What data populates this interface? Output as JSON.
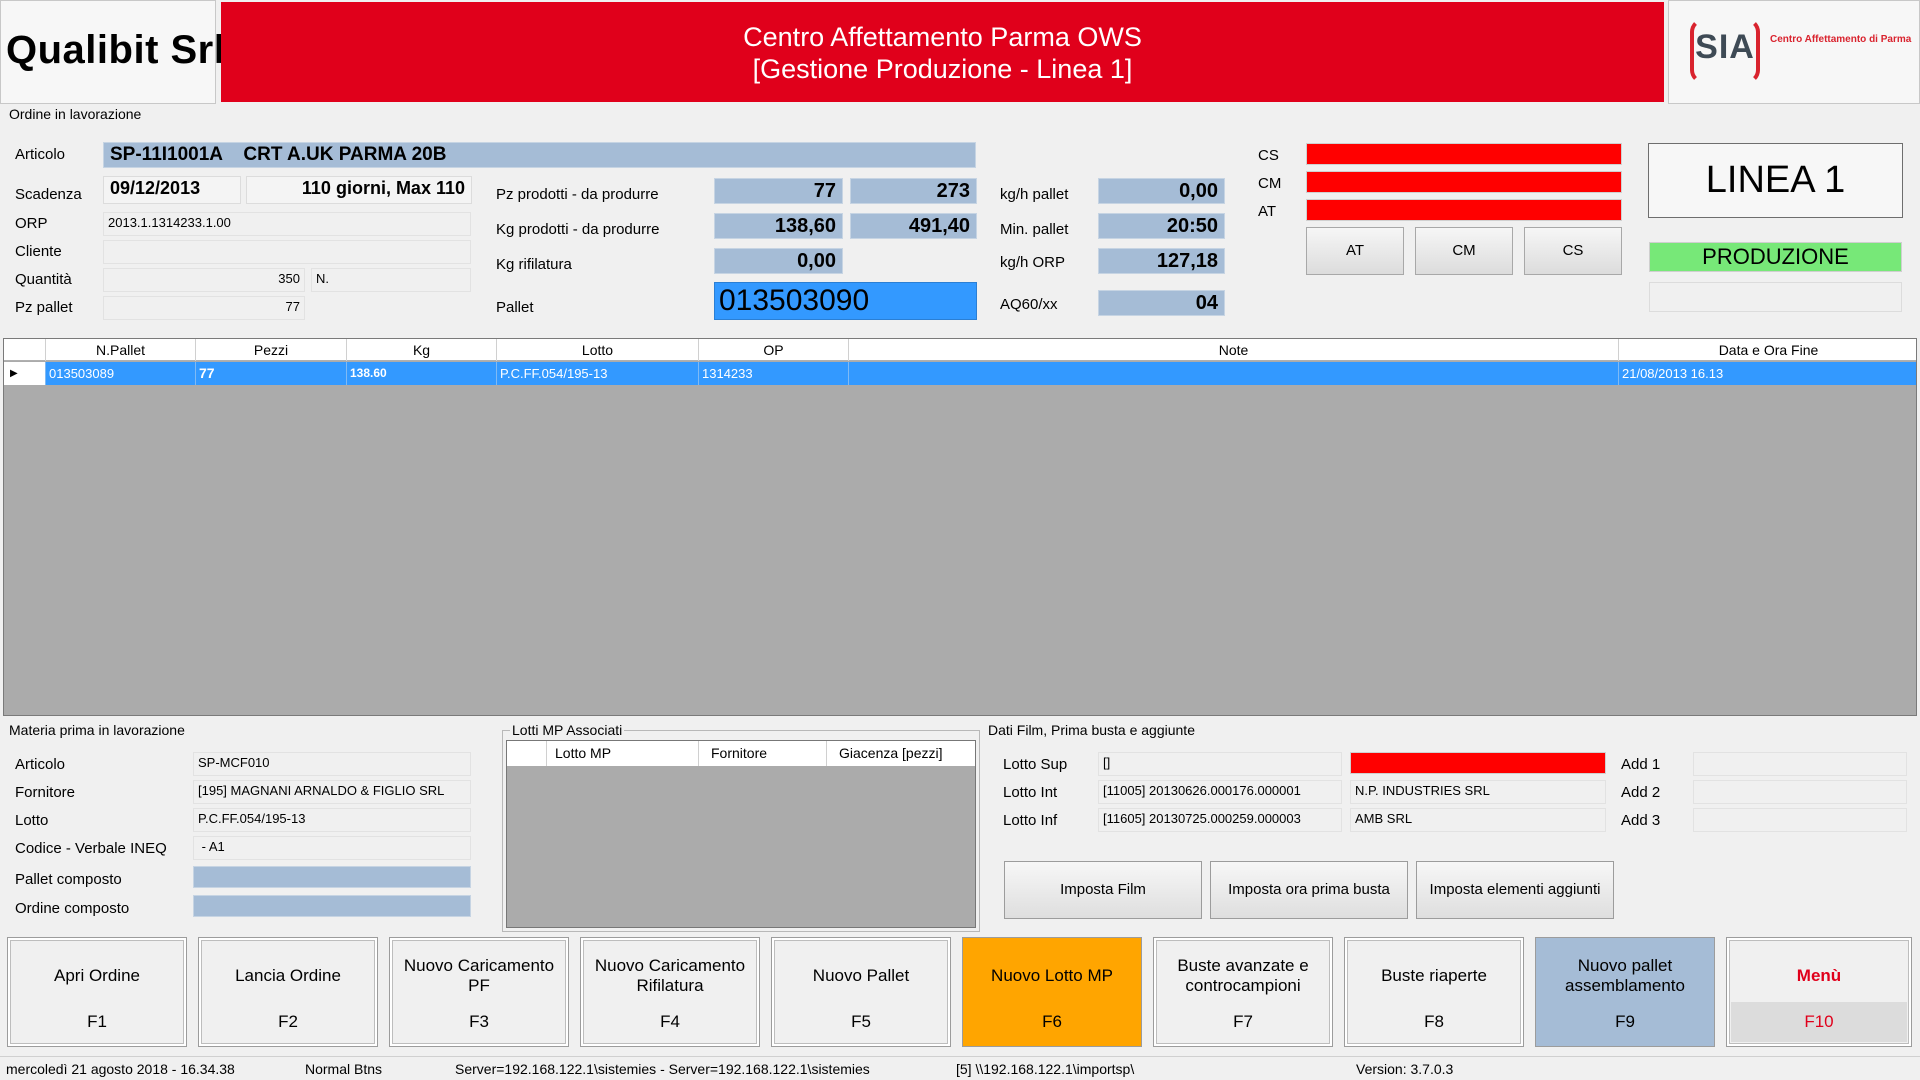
{
  "header": {
    "company": "Qualibit Srl",
    "title_line1": "Centro Affettamento Parma OWS",
    "title_line2": "[Gestione Produzione - Linea 1]",
    "logo_text": "SIA",
    "logo_sub": "Centro Affettamento di Parma"
  },
  "order": {
    "section_title": "Ordine in lavorazione",
    "articolo_label": "Articolo",
    "articolo_value": "SP-11I1001A    CRT A.UK PARMA 20B",
    "scadenza_label": "Scadenza",
    "scadenza_value": "09/12/2013",
    "scadenza_info": "110 giorni, Max 110",
    "orp_label": "ORP",
    "orp_value": "2013.1.1314233.1.00",
    "cliente_label": "Cliente",
    "cliente_value": "",
    "quantita_label": "Quantità",
    "quantita_value": "350",
    "quantita_unit": "N.",
    "pzpallet_label": "Pz pallet",
    "pzpallet_value": "77"
  },
  "production": {
    "pz_label": "Pz prodotti - da produrre",
    "pz_prodotti": "77",
    "pz_da_produrre": "273",
    "kg_label": "Kg prodotti - da produrre",
    "kg_prodotti": "138,60",
    "kg_da_produrre": "491,40",
    "kg_rifilatura_label": "Kg rifilatura",
    "kg_rifilatura": "0,00",
    "pallet_label": "Pallet",
    "pallet_value": "013503090",
    "kgh_pallet_label": "kg/h pallet",
    "kgh_pallet": "0,00",
    "min_pallet_label": "Min. pallet",
    "min_pallet": "20:50",
    "kgh_orp_label": "kg/h ORP",
    "kgh_orp": "127,18",
    "aq_label": "AQ60/xx",
    "aq_value": "04"
  },
  "alarms": {
    "cs_label": "CS",
    "cm_label": "CM",
    "at_label": "AT",
    "bar_color": "#ff0000",
    "btn_at": "AT",
    "btn_cm": "CM",
    "btn_cs": "CS"
  },
  "line": {
    "name": "LINEA 1",
    "status": "PRODUZIONE",
    "status_color": "#77e878",
    "extra": ""
  },
  "pallet_grid": {
    "columns": [
      "N.Pallet",
      "Pezzi",
      "Kg",
      "Lotto",
      "OP",
      "Note",
      "Data e Ora Fine"
    ],
    "rows": [
      [
        "013503089",
        "77",
        "138.60",
        "P.C.FF.054/195-13",
        "1314233",
        "",
        "21/08/2013 16.13"
      ]
    ],
    "selected_color": "#3399ff"
  },
  "materia": {
    "section_title": "Materia prima in lavorazione",
    "articolo_label": "Articolo",
    "articolo_value": "SP-MCF010",
    "fornitore_label": "Fornitore",
    "fornitore_value": "[195] MAGNANI ARNALDO & FIGLIO SRL",
    "lotto_label": "Lotto",
    "lotto_value": "P.C.FF.054/195-13",
    "codice_label": "Codice - Verbale INEQ",
    "codice_value": " - A1",
    "pallet_composto_label": "Pallet composto",
    "ordine_composto_label": "Ordine composto"
  },
  "lotti_mp": {
    "section_title": "Lotti MP Associati",
    "columns": [
      "Lotto MP",
      "Fornitore",
      "Giacenza [pezzi]"
    ]
  },
  "film": {
    "section_title": "Dati Film, Prima busta e aggiunte",
    "lotto_sup_label": "Lotto Sup",
    "lotto_sup_value": "[]",
    "lotto_int_label": "Lotto Int",
    "lotto_int_value": "[11005] 20130626.000176.000001",
    "lotto_int_supplier": "N.P. INDUSTRIES SRL",
    "lotto_inf_label": "Lotto Inf",
    "lotto_inf_value": "[11605] 20130725.000259.000003",
    "lotto_inf_supplier": "AMB SRL",
    "add1_label": "Add 1",
    "add2_label": "Add 2",
    "add3_label": "Add 3",
    "btn_imposta_film": "Imposta Film",
    "btn_imposta_ora": "Imposta ora prima busta",
    "btn_imposta_elementi": "Imposta elementi aggiunti"
  },
  "fkeys": [
    {
      "label": "Apri Ordine",
      "key": "F1"
    },
    {
      "label": "Lancia Ordine",
      "key": "F2"
    },
    {
      "label": "Nuovo Caricamento PF",
      "key": "F3"
    },
    {
      "label": "Nuovo Caricamento Rifilatura",
      "key": "F4"
    },
    {
      "label": "Nuovo Pallet",
      "key": "F5"
    },
    {
      "label": "Nuovo Lotto MP",
      "key": "F6",
      "color": "#ffa500"
    },
    {
      "label": "Buste avanzate e controcampioni",
      "key": "F7"
    },
    {
      "label": "Buste riaperte",
      "key": "F8"
    },
    {
      "label": "Nuovo pallet assemblamento",
      "key": "F9",
      "color": "#a5bcd6"
    },
    {
      "label": "Menù",
      "key": "F10",
      "text_color": "#e0001b"
    }
  ],
  "status": {
    "datetime": "mercoledì 21 agosto 2018 - 16.34.38",
    "mode": "Normal Btns",
    "server": "Server=192.168.122.1\\sistemies - Server=192.168.122.1\\sistemies",
    "path": "[5] \\\\192.168.122.1\\importsp\\",
    "version": "Version: 3.7.0.3"
  }
}
